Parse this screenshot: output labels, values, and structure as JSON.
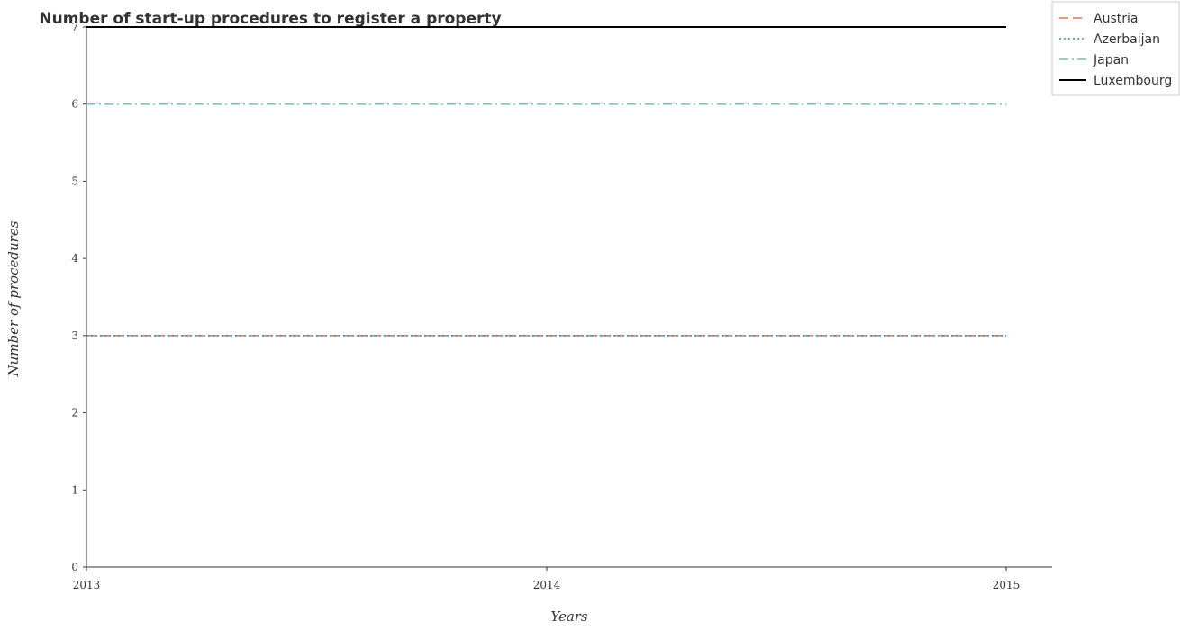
{
  "chart_data": {
    "type": "line",
    "title": "Number of start-up procedures to register a property",
    "xlabel": "Years",
    "ylabel": "Number of procedures",
    "x": [
      "2013",
      "2014",
      "2015"
    ],
    "ylim": [
      0,
      7
    ],
    "yticks": [
      "0",
      "1",
      "2",
      "3",
      "4",
      "5",
      "6",
      "7"
    ],
    "grid": false,
    "legend_position": "top-right",
    "series": [
      {
        "name": "Austria",
        "values": [
          3,
          3,
          3
        ],
        "color": "#e8704a",
        "style": "dashed"
      },
      {
        "name": "Azerbaijan",
        "values": [
          3,
          3,
          3
        ],
        "color": "#2a8fbd",
        "style": "dotted"
      },
      {
        "name": "Japan",
        "values": [
          6,
          6,
          6
        ],
        "color": "#66c2c9",
        "style": "dashdot"
      },
      {
        "name": "Luxembourg",
        "values": [
          7,
          7,
          7
        ],
        "color": "#000000",
        "style": "solid"
      }
    ]
  }
}
